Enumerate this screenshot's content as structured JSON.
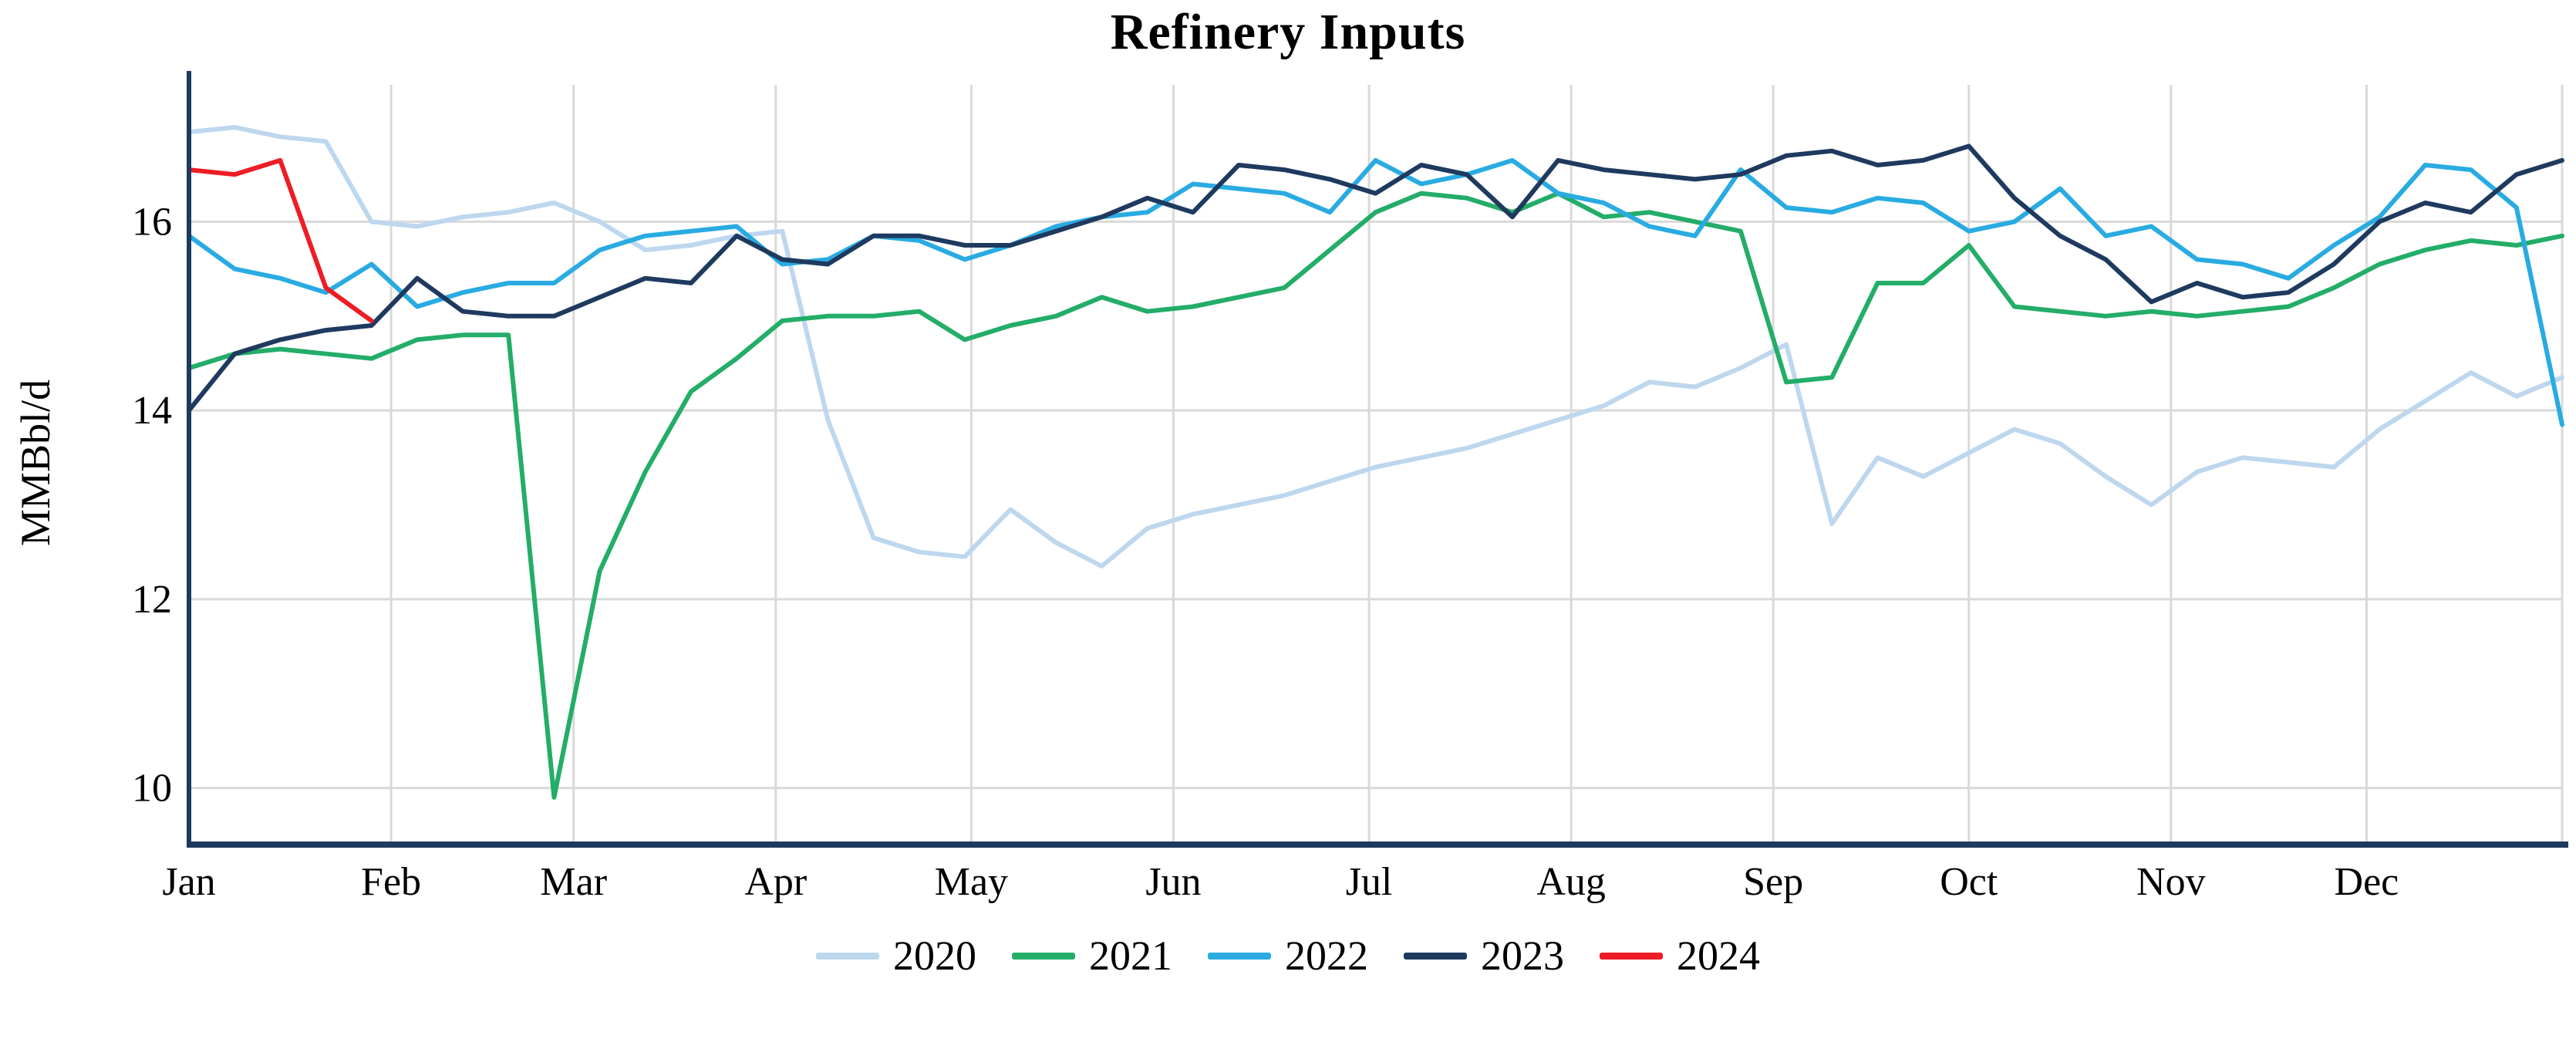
{
  "chart_data": {
    "type": "line",
    "title": "Refinery Inputs",
    "ylabel": "MMBbl/d",
    "xlabel": "",
    "x_unit": "weekly observations across one calendar year",
    "x_tick_labels": [
      "Jan",
      "Feb",
      "Mar",
      "Apr",
      "May",
      "Jun",
      "Jul",
      "Aug",
      "Sep",
      "Oct",
      "Nov",
      "Dec"
    ],
    "month_start_days": [
      0,
      31,
      59,
      90,
      120,
      151,
      181,
      212,
      243,
      273,
      304,
      334
    ],
    "x_domain_days": [
      0,
      364
    ],
    "yticks": [
      10,
      12,
      14,
      16
    ],
    "ylim": [
      9.4,
      17.45
    ],
    "grid": true,
    "legend_position": "bottom",
    "series": [
      {
        "name": "2020",
        "color": "#bdd7ee",
        "values": [
          16.95,
          17.0,
          16.9,
          16.85,
          16.0,
          15.95,
          16.05,
          16.1,
          16.2,
          16.0,
          15.7,
          15.75,
          15.85,
          15.9,
          13.9,
          12.65,
          12.5,
          12.45,
          12.95,
          12.6,
          12.35,
          12.75,
          12.9,
          13.0,
          13.1,
          13.25,
          13.4,
          13.5,
          13.6,
          13.75,
          13.9,
          14.05,
          14.3,
          14.25,
          14.45,
          14.7,
          12.8,
          13.5,
          13.3,
          13.55,
          13.8,
          13.65,
          13.3,
          13.0,
          13.35,
          13.5,
          13.45,
          13.4,
          13.8,
          14.1,
          14.4,
          14.15,
          14.35
        ]
      },
      {
        "name": "2021",
        "color": "#23ad68",
        "values": [
          14.45,
          14.6,
          14.65,
          14.6,
          14.55,
          14.75,
          14.8,
          14.8,
          9.9,
          12.3,
          13.35,
          14.2,
          14.55,
          14.95,
          15.0,
          15.0,
          15.05,
          14.75,
          14.9,
          15.0,
          15.2,
          15.05,
          15.1,
          15.2,
          15.3,
          15.7,
          16.1,
          16.3,
          16.25,
          16.1,
          16.3,
          16.05,
          16.1,
          16.0,
          15.9,
          14.3,
          14.35,
          15.35,
          15.35,
          15.75,
          15.1,
          15.05,
          15.0,
          15.05,
          15.0,
          15.05,
          15.1,
          15.3,
          15.55,
          15.7,
          15.8,
          15.75,
          15.85
        ]
      },
      {
        "name": "2022",
        "color": "#29abe2",
        "values": [
          15.85,
          15.5,
          15.4,
          15.25,
          15.55,
          15.1,
          15.25,
          15.35,
          15.35,
          15.7,
          15.85,
          15.9,
          15.95,
          15.55,
          15.6,
          15.85,
          15.8,
          15.6,
          15.75,
          15.95,
          16.05,
          16.1,
          16.4,
          16.35,
          16.3,
          16.1,
          16.65,
          16.4,
          16.5,
          16.65,
          16.3,
          16.2,
          15.95,
          15.85,
          16.55,
          16.15,
          16.1,
          16.25,
          16.2,
          15.9,
          16.0,
          16.35,
          15.85,
          15.95,
          15.6,
          15.55,
          15.4,
          15.75,
          16.05,
          16.6,
          16.55,
          16.15,
          13.85
        ]
      },
      {
        "name": "2023",
        "color": "#1e3a5f",
        "values": [
          14.0,
          14.6,
          14.75,
          14.85,
          14.9,
          15.4,
          15.05,
          15.0,
          15.0,
          15.2,
          15.4,
          15.35,
          15.85,
          15.6,
          15.55,
          15.85,
          15.85,
          15.75,
          15.75,
          15.9,
          16.05,
          16.25,
          16.1,
          16.6,
          16.55,
          16.45,
          16.3,
          16.6,
          16.5,
          16.05,
          16.65,
          16.55,
          16.5,
          16.45,
          16.5,
          16.7,
          16.75,
          16.6,
          16.65,
          16.8,
          16.25,
          15.85,
          15.6,
          15.15,
          15.35,
          15.2,
          15.25,
          15.55,
          16.0,
          16.2,
          16.1,
          16.5,
          16.65
        ]
      },
      {
        "name": "2024",
        "color": "#ee1c25",
        "values": [
          16.55,
          16.5,
          16.65,
          15.3,
          14.95
        ]
      }
    ]
  },
  "colors": {
    "axis": "#1e3a5f",
    "grid": "#d9d9d9",
    "text": "#000000",
    "background": "#ffffff"
  }
}
